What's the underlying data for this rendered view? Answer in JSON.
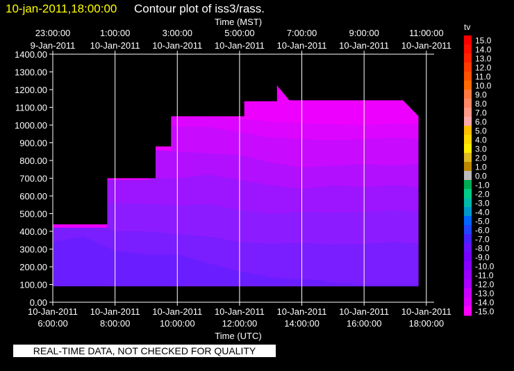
{
  "header": {
    "timestamp": "10-jan-2011,18:00:00",
    "title": "Contour plot of iss3/rass."
  },
  "notice": "REAL-TIME DATA, NOT CHECKED FOR QUALITY",
  "colors": {
    "background": "#000000",
    "timestamp": "#ffff00",
    "text": "#ffffff",
    "grid": "#ffffff"
  },
  "chart_data": {
    "type": "heatmap",
    "title": "Contour plot of iss3/rass.",
    "xlabel_top": "Time (MST)",
    "xlabel_bottom": "Time (UTC)",
    "ylim": [
      0,
      1400
    ],
    "xlim_utc_hours": [
      6,
      18.25
    ],
    "y_ticks": [
      "0.00",
      "100.00",
      "200.00",
      "300.00",
      "400.00",
      "500.00",
      "600.00",
      "700.00",
      "800.00",
      "900.00",
      "1000.00",
      "1100.00",
      "1200.00",
      "1300.00",
      "1400.00"
    ],
    "x_ticks_bottom": [
      {
        "date": "10-Jan-2011",
        "time": "6:00:00",
        "h": 6
      },
      {
        "date": "10-Jan-2011",
        "time": "8:00:00",
        "h": 8
      },
      {
        "date": "10-Jan-2011",
        "time": "10:00:00",
        "h": 10
      },
      {
        "date": "10-Jan-2011",
        "time": "12:00:00",
        "h": 12
      },
      {
        "date": "10-Jan-2011",
        "time": "14:00:00",
        "h": 14
      },
      {
        "date": "10-Jan-2011",
        "time": "16:00:00",
        "h": 16
      },
      {
        "date": "10-Jan-2011",
        "time": "18:00:00",
        "h": 18
      }
    ],
    "x_ticks_top": [
      {
        "time": "23:00:00",
        "date": "9-Jan-2011",
        "h": 6
      },
      {
        "time": "1:00:00",
        "date": "10-Jan-2011",
        "h": 8
      },
      {
        "time": "3:00:00",
        "date": "10-Jan-2011",
        "h": 10
      },
      {
        "time": "5:00:00",
        "date": "10-Jan-2011",
        "h": 12
      },
      {
        "time": "7:00:00",
        "date": "10-Jan-2011",
        "h": 14
      },
      {
        "time": "9:00:00",
        "date": "10-Jan-2011",
        "h": 16
      },
      {
        "time": "11:00:00",
        "date": "10-Jan-2011",
        "h": 18
      }
    ],
    "grid": true,
    "legend": {
      "title": "tv",
      "placement": "right",
      "levels": [
        {
          "label": "15.0",
          "color": "#ff0000"
        },
        {
          "label": "14.0",
          "color": "#ff1000"
        },
        {
          "label": "13.0",
          "color": "#ff2200"
        },
        {
          "label": "12.0",
          "color": "#ff3a00"
        },
        {
          "label": "11.0",
          "color": "#ff5000"
        },
        {
          "label": "10.0",
          "color": "#ff6a00"
        },
        {
          "label": "9.0",
          "color": "#ff7a40"
        },
        {
          "label": "8.0",
          "color": "#ff8866"
        },
        {
          "label": "7.0",
          "color": "#ff9a88"
        },
        {
          "label": "6.0",
          "color": "#ffaaaa"
        },
        {
          "label": "5.0",
          "color": "#ffc000"
        },
        {
          "label": "4.0",
          "color": "#ffd800"
        },
        {
          "label": "3.0",
          "color": "#ffee00"
        },
        {
          "label": "2.0",
          "color": "#ddbb22"
        },
        {
          "label": "1.0",
          "color": "#bb8800"
        },
        {
          "label": "0.0",
          "color": "#bbbbbb"
        },
        {
          "label": "-1.0",
          "color": "#00aa55"
        },
        {
          "label": "-2.0",
          "color": "#00cc88"
        },
        {
          "label": "-3.0",
          "color": "#00bbaa"
        },
        {
          "label": "-4.0",
          "color": "#0099cc"
        },
        {
          "label": "-5.0",
          "color": "#0066ff"
        },
        {
          "label": "-6.0",
          "color": "#2244ff"
        },
        {
          "label": "-7.0",
          "color": "#4422ff"
        },
        {
          "label": "-8.0",
          "color": "#6611ff"
        },
        {
          "label": "-9.0",
          "color": "#7700ff"
        },
        {
          "label": "-10.0",
          "color": "#8800ff"
        },
        {
          "label": "-11.0",
          "color": "#9900ff"
        },
        {
          "label": "-12.0",
          "color": "#aa00ff"
        },
        {
          "label": "-13.0",
          "color": "#cc00ff"
        },
        {
          "label": "-14.0",
          "color": "#dd00ff"
        },
        {
          "label": "-15.0",
          "color": "#ff00ff"
        }
      ]
    },
    "data_extent": {
      "bottom_m": 90,
      "top_envelope": [
        [
          6,
          440
        ],
        [
          7.75,
          440
        ],
        [
          7.75,
          700
        ],
        [
          9.3,
          700
        ],
        [
          9.3,
          880
        ],
        [
          9.8,
          880
        ],
        [
          9.8,
          1050
        ],
        [
          12.15,
          1050
        ],
        [
          12.15,
          1135
        ],
        [
          13.2,
          1135
        ],
        [
          13.2,
          1225
        ],
        [
          13.6,
          1140
        ],
        [
          17.25,
          1140
        ],
        [
          17.75,
          1050
        ],
        [
          17.75,
          90
        ],
        [
          6,
          90
        ]
      ]
    },
    "bands": [
      {
        "value": -7.5,
        "color": "#6a1eff",
        "top": [
          [
            6,
            340
          ],
          [
            7,
            370
          ],
          [
            8,
            290
          ],
          [
            9,
            270
          ],
          [
            10,
            270
          ],
          [
            11,
            220
          ],
          [
            12,
            175
          ],
          [
            13,
            140
          ],
          [
            14,
            130
          ],
          [
            14.6,
            125
          ],
          [
            15,
            110
          ],
          [
            16,
            100
          ],
          [
            17.75,
            100
          ]
        ]
      },
      {
        "value": -8.5,
        "color": "#7a1dff",
        "top": [
          [
            6,
            420
          ],
          [
            7.75,
            420
          ],
          [
            8,
            400
          ],
          [
            9,
            400
          ],
          [
            10,
            385
          ],
          [
            11,
            370
          ],
          [
            12,
            340
          ],
          [
            13,
            330
          ],
          [
            14,
            335
          ],
          [
            15,
            325
          ],
          [
            16,
            330
          ],
          [
            17,
            340
          ],
          [
            17.75,
            330
          ]
        ]
      },
      {
        "value": -9.5,
        "color": "#8c1cff",
        "top": [
          [
            7.75,
            560
          ],
          [
            8,
            560
          ],
          [
            9,
            555
          ],
          [
            10,
            545
          ],
          [
            11,
            555
          ],
          [
            12,
            520
          ],
          [
            13,
            500
          ],
          [
            14,
            510
          ],
          [
            15,
            505
          ],
          [
            16,
            510
          ],
          [
            17,
            520
          ],
          [
            17.75,
            510
          ]
        ]
      },
      {
        "value": -10.5,
        "color": "#9d14ff",
        "top": [
          [
            7.75,
            690
          ],
          [
            9,
            690
          ],
          [
            9.3,
            700
          ],
          [
            10,
            700
          ],
          [
            11,
            720
          ],
          [
            12,
            690
          ],
          [
            13,
            660
          ],
          [
            14,
            640
          ],
          [
            15,
            660
          ],
          [
            16,
            650
          ],
          [
            17,
            660
          ],
          [
            17.75,
            650
          ]
        ]
      },
      {
        "value": -11.5,
        "color": "#b20fff",
        "top": [
          [
            9.3,
            860
          ],
          [
            10,
            850
          ],
          [
            11,
            840
          ],
          [
            12,
            830
          ],
          [
            13,
            790
          ],
          [
            14,
            760
          ],
          [
            15,
            770
          ],
          [
            16,
            780
          ],
          [
            17,
            770
          ],
          [
            17.75,
            780
          ]
        ]
      },
      {
        "value": -12.5,
        "color": "#c80aff",
        "top": [
          [
            9.8,
            1000
          ],
          [
            10,
            990
          ],
          [
            11,
            990
          ],
          [
            12,
            960
          ],
          [
            13,
            930
          ],
          [
            14,
            920
          ],
          [
            15,
            915
          ],
          [
            16,
            920
          ],
          [
            17,
            930
          ],
          [
            17.75,
            920
          ]
        ]
      },
      {
        "value": -13.5,
        "color": "#dc05ff",
        "top": [
          [
            9.8,
            1040
          ],
          [
            11,
            1045
          ],
          [
            12,
            1035
          ],
          [
            13,
            1020
          ],
          [
            14,
            1010
          ],
          [
            15,
            1005
          ],
          [
            16,
            1000
          ],
          [
            17,
            1010
          ],
          [
            17.75,
            1000
          ]
        ]
      }
    ],
    "fill_color": "#ee00ff"
  }
}
